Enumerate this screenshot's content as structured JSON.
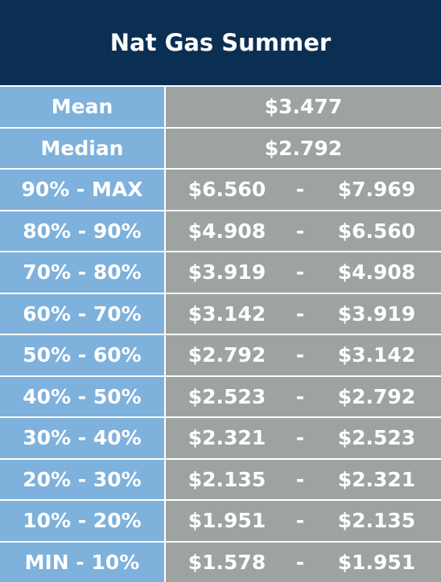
{
  "header": {
    "title": "Nat Gas Summer"
  },
  "summary": [
    {
      "label": "Mean",
      "value": "$3.477"
    },
    {
      "label": "Median",
      "value": "$2.792"
    }
  ],
  "table": {
    "rows": [
      [
        "90% - MAX",
        "$6.560",
        "-",
        "$7.969"
      ],
      [
        "80% - 90%",
        "$4.908",
        "-",
        "$6.560"
      ],
      [
        "70% - 80%",
        "$3.919",
        "-",
        "$4.908"
      ],
      [
        "60% - 70%",
        "$3.142",
        "-",
        "$3.919"
      ],
      [
        "50% - 60%",
        "$2.792",
        "-",
        "$3.142"
      ],
      [
        "40% - 50%",
        "$2.523",
        "-",
        "$2.792"
      ],
      [
        "30% - 40%",
        "$2.321",
        "-",
        "$2.523"
      ],
      [
        "20% - 30%",
        "$2.135",
        "-",
        "$2.321"
      ],
      [
        "10% - 20%",
        "$1.951",
        "-",
        "$2.135"
      ],
      [
        "MIN - 10%",
        "$1.578",
        "-",
        "$1.951"
      ]
    ]
  }
}
